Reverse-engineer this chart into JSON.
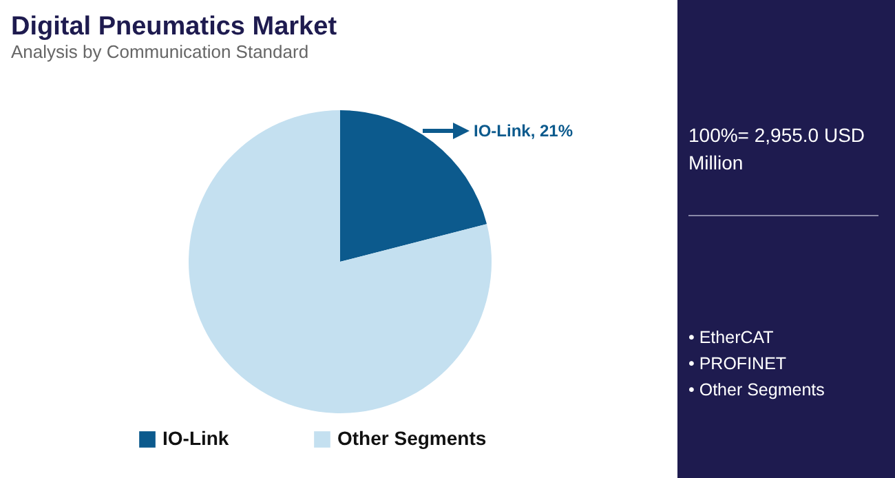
{
  "chart_data": {
    "type": "pie",
    "title": "Digital Pneumatics Market",
    "subtitle": "Analysis by Communication Standard",
    "categories": [
      "IO-Link",
      "Other Segments"
    ],
    "values": [
      21,
      79
    ],
    "colors": [
      "#0c5a8d",
      "#c4e0f0"
    ],
    "value_labels": [
      "IO-Link, 21%",
      null
    ],
    "legend": "bottom",
    "annotations": [
      "100%= 2,955.0 USD Million",
      "• EtherCAT",
      "• PROFINET",
      "• Other Segments"
    ]
  }
}
